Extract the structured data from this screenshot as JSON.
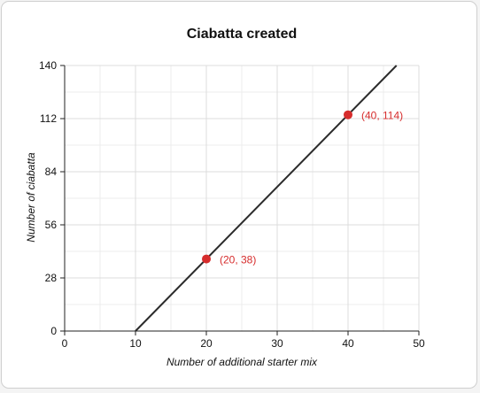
{
  "chart_data": {
    "type": "line",
    "title": "Ciabatta created",
    "xlabel": "Number of additional starter mix",
    "ylabel": "Number of ciabatta",
    "xlim": [
      0,
      50
    ],
    "ylim": [
      0,
      140
    ],
    "x_ticks": [
      0,
      10,
      20,
      30,
      40,
      50
    ],
    "y_ticks": [
      0,
      28,
      56,
      84,
      112,
      140
    ],
    "x_minor_step": 5,
    "y_minor_step": 14,
    "grid": true,
    "series": [
      {
        "x": [
          10,
          46.84
        ],
        "y": [
          0,
          140
        ],
        "color": "#2b2b2b"
      }
    ],
    "points": [
      {
        "x": 20,
        "y": 38,
        "label": "(20, 38)",
        "color": "#d62c2c"
      },
      {
        "x": 40,
        "y": 114,
        "label": "(40, 114)",
        "color": "#d62c2c"
      }
    ]
  }
}
